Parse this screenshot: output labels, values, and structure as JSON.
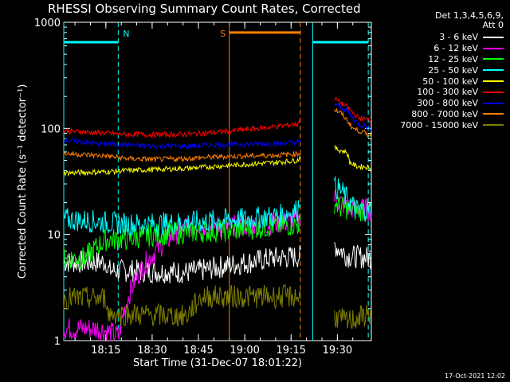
{
  "chart_data": {
    "type": "line",
    "title": "RHESSI Observing Summary Count Rates, Corrected",
    "xlabel": "Start Time (31-Dec-07 18:01:22)",
    "ylabel": "Corrected Count Rate (s⁻¹ detector⁻¹)",
    "yscale": "log",
    "ylim": [
      1,
      1000
    ],
    "xlim": [
      "18:01:22",
      "19:41:00"
    ],
    "x_ticks": [
      "18:15",
      "18:30",
      "18:45",
      "19:00",
      "19:15",
      "19:30"
    ],
    "y_ticks": [
      "1",
      "10",
      "100",
      "1000"
    ],
    "legend_header": [
      "Det 1,3,4,5,6,9,",
      "Att 0"
    ],
    "legend_position": "right",
    "series": [
      {
        "name": "3 - 6 keV",
        "color": "#ffffff",
        "seg1": [
          [
            0,
            5.5
          ],
          [
            14,
            5.5
          ],
          [
            14,
            4.6
          ],
          [
            40,
            4.4
          ],
          [
            45,
            4.6
          ],
          [
            55,
            5.2
          ],
          [
            62,
            5.6
          ],
          [
            68,
            6.0
          ],
          [
            77,
            6.2
          ]
        ],
        "seg2": [
          [
            88,
            8
          ],
          [
            89,
            7.5
          ],
          [
            91,
            6.8
          ],
          [
            92,
            6.3
          ],
          [
            100,
            6
          ]
        ]
      },
      {
        "name": "6 - 12 keV",
        "color": "#ff00ff",
        "seg1": [
          [
            0,
            1.3
          ],
          [
            11,
            1.3
          ],
          [
            15,
            1.2
          ],
          [
            18,
            1.1
          ],
          [
            40,
            12
          ],
          [
            55,
            12
          ],
          [
            65,
            12.5
          ],
          [
            77,
            13.5
          ]
        ],
        "seg2": [
          [
            88,
            22
          ],
          [
            90,
            20
          ],
          [
            92,
            18
          ],
          [
            100,
            17
          ]
        ]
      },
      {
        "name": "12 - 25 keV",
        "color": "#00ff00",
        "seg1": [
          [
            0,
            6
          ],
          [
            7,
            6
          ],
          [
            14,
            9
          ],
          [
            20,
            9
          ],
          [
            30,
            10
          ],
          [
            40,
            10.5
          ],
          [
            55,
            11
          ],
          [
            68,
            12
          ],
          [
            77,
            12.5
          ]
        ],
        "seg2": [
          [
            88,
            20
          ],
          [
            90,
            18
          ],
          [
            95,
            17
          ],
          [
            100,
            17
          ]
        ]
      },
      {
        "name": "25 - 50 keV",
        "color": "#00ffff",
        "seg1": [
          [
            0,
            14
          ],
          [
            14,
            13
          ],
          [
            20,
            12.5
          ],
          [
            30,
            12.5
          ],
          [
            40,
            13
          ],
          [
            50,
            13.5
          ],
          [
            60,
            14
          ],
          [
            70,
            15
          ],
          [
            76,
            17
          ],
          [
            77,
            24
          ]
        ],
        "seg2": [
          [
            88,
            28
          ],
          [
            90,
            26
          ],
          [
            92,
            22
          ],
          [
            95,
            17
          ],
          [
            100,
            17
          ]
        ]
      },
      {
        "name": "50 - 100 keV",
        "color": "#ffff00",
        "seg1": [
          [
            0,
            38
          ],
          [
            14,
            39
          ],
          [
            20,
            40
          ],
          [
            30,
            41
          ],
          [
            40,
            42
          ],
          [
            50,
            44
          ],
          [
            60,
            46
          ],
          [
            70,
            48
          ],
          [
            76,
            50
          ],
          [
            77,
            55
          ]
        ],
        "seg2": [
          [
            88,
            65
          ],
          [
            90,
            62
          ],
          [
            92,
            60
          ],
          [
            93,
            48
          ],
          [
            95,
            44
          ],
          [
            100,
            43
          ]
        ]
      },
      {
        "name": "100 - 300 keV",
        "color": "#ff0000",
        "seg1": [
          [
            0,
            95
          ],
          [
            14,
            90
          ],
          [
            20,
            88
          ],
          [
            30,
            87
          ],
          [
            40,
            88
          ],
          [
            50,
            92
          ],
          [
            60,
            98
          ],
          [
            70,
            105
          ],
          [
            76,
            110
          ],
          [
            77,
            125
          ]
        ],
        "seg2": [
          [
            88,
            190
          ],
          [
            90,
            175
          ],
          [
            92,
            160
          ],
          [
            94,
            140
          ],
          [
            96,
            125
          ],
          [
            100,
            120
          ]
        ]
      },
      {
        "name": "300 - 800 keV",
        "color": "#0000ff",
        "seg1": [
          [
            0,
            78
          ],
          [
            10,
            72
          ],
          [
            20,
            70
          ],
          [
            30,
            68
          ],
          [
            40,
            68
          ],
          [
            50,
            70
          ],
          [
            60,
            71
          ],
          [
            70,
            72
          ],
          [
            77,
            75
          ]
        ],
        "seg2": [
          [
            88,
            170
          ],
          [
            90,
            160
          ],
          [
            92,
            148
          ],
          [
            94,
            125
          ],
          [
            96,
            110
          ],
          [
            100,
            100
          ]
        ]
      },
      {
        "name": "800 - 7000 keV",
        "color": "#ff8000",
        "seg1": [
          [
            0,
            58
          ],
          [
            14,
            55
          ],
          [
            20,
            52
          ],
          [
            30,
            51
          ],
          [
            40,
            52
          ],
          [
            50,
            54
          ],
          [
            60,
            55
          ],
          [
            70,
            56
          ],
          [
            77,
            58
          ]
        ],
        "seg2": [
          [
            88,
            150
          ],
          [
            90,
            140
          ],
          [
            92,
            120
          ],
          [
            94,
            100
          ],
          [
            96,
            95
          ],
          [
            100,
            85
          ]
        ]
      },
      {
        "name": "7000 - 15000 keV",
        "color": "#808000",
        "seg1": [
          [
            0,
            2.5
          ],
          [
            14,
            2.5
          ],
          [
            14,
            1.8
          ],
          [
            40,
            1.7
          ],
          [
            45,
            2.6
          ],
          [
            77,
            2.6
          ]
        ],
        "seg2": [
          [
            88,
            1.7
          ],
          [
            92,
            1.5
          ],
          [
            100,
            1.8
          ]
        ]
      }
    ],
    "x_percent_note_values": [
      0,
      100
    ],
    "markers": [
      {
        "label": "N",
        "color": "#00ffff",
        "type": "night",
        "start": "18:01",
        "end": "18:19"
      },
      {
        "label": "S",
        "color": "#ff8000",
        "type": "saa",
        "start": "18:55",
        "end": "19:18"
      },
      {
        "label": "",
        "color": "#00ffff",
        "type": "night",
        "start": "19:22",
        "end": "19:40"
      }
    ]
  },
  "footer": "17-Oct-2021 12:02"
}
